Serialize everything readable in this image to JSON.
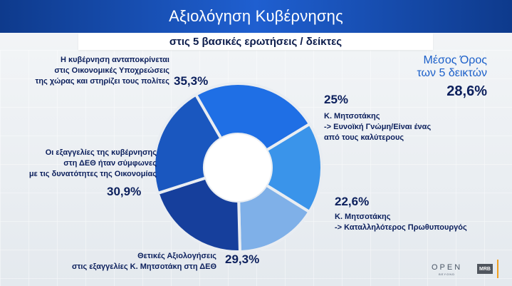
{
  "header": {
    "title": "Αξιολόγηση Κυβέρνησης",
    "subtitle": "στις 5 βασικές ερωτήσεις / δείκτες"
  },
  "average": {
    "label_line1": "Μέσος Όρος",
    "label_line2": "των 5 δεικτών",
    "value": "28,6%"
  },
  "segments": [
    {
      "label_lines": [
        "Η κυβέρνηση ανταποκρίνεται",
        "στις Οικονομικές Υποχρεώσεις",
        "της χώρας και στηρίζει τους πολίτες"
      ],
      "pct_label": "35,3%"
    },
    {
      "label_lines": [
        "Κ. Μητσοτάκης",
        "-> Ευνοϊκή Γνώμη/Είναι ένας",
        "από τους καλύτερους"
      ],
      "pct_label": "25%"
    },
    {
      "label_lines": [
        "Κ. Μητσοτάκης",
        "-> Καταλληλότερος Πρωθυπουργός"
      ],
      "pct_label": "22,6%"
    },
    {
      "label_lines": [
        "Θετικές Αξιολογήσεις",
        "στις εξαγγελίες Κ. Μητσοτάκη στη ΔΕΘ"
      ],
      "pct_label": "29,3%"
    },
    {
      "label_lines": [
        "Οι εξαγγελίες της κυβέρνησης",
        "στη ΔΕΘ ήταν σύμφωνες",
        "με τις δυνατότητες της Οικονομίας"
      ],
      "pct_label": "30,9%"
    }
  ],
  "chart_data": {
    "type": "pie",
    "donut": true,
    "categories": [
      "Η κυβέρνηση ανταποκρίνεται στις Οικονομικές Υποχρεώσεις της χώρας και στηρίζει τους πολίτες",
      "Κ. Μητσοτάκης -> Ευνοϊκή Γνώμη/Είναι ένας από τους καλύτερους",
      "Κ. Μητσοτάκης -> Καταλληλότερος Πρωθυπουργός",
      "Θετικές Αξιολογήσεις στις εξαγγελίες Κ. Μητσοτάκη στη ΔΕΘ",
      "Οι εξαγγελίες της κυβέρνησης στη ΔΕΘ ήταν σύμφωνες με τις δυνατότητες της Οικονομίας"
    ],
    "values": [
      35.3,
      25,
      22.6,
      29.3,
      30.9
    ],
    "colors": [
      "#1f6fe5",
      "#3a94ea",
      "#7fb0e8",
      "#163f9c",
      "#1a57bf"
    ],
    "title": "Αξιολόγηση Κυβέρνησης",
    "subtitle": "στις 5 βασικές ερωτήσεις / δείκτες"
  },
  "branding": {
    "open_logo": "OPEN",
    "open_tagline": "BEYOND",
    "mrb_logo": "MRB"
  }
}
